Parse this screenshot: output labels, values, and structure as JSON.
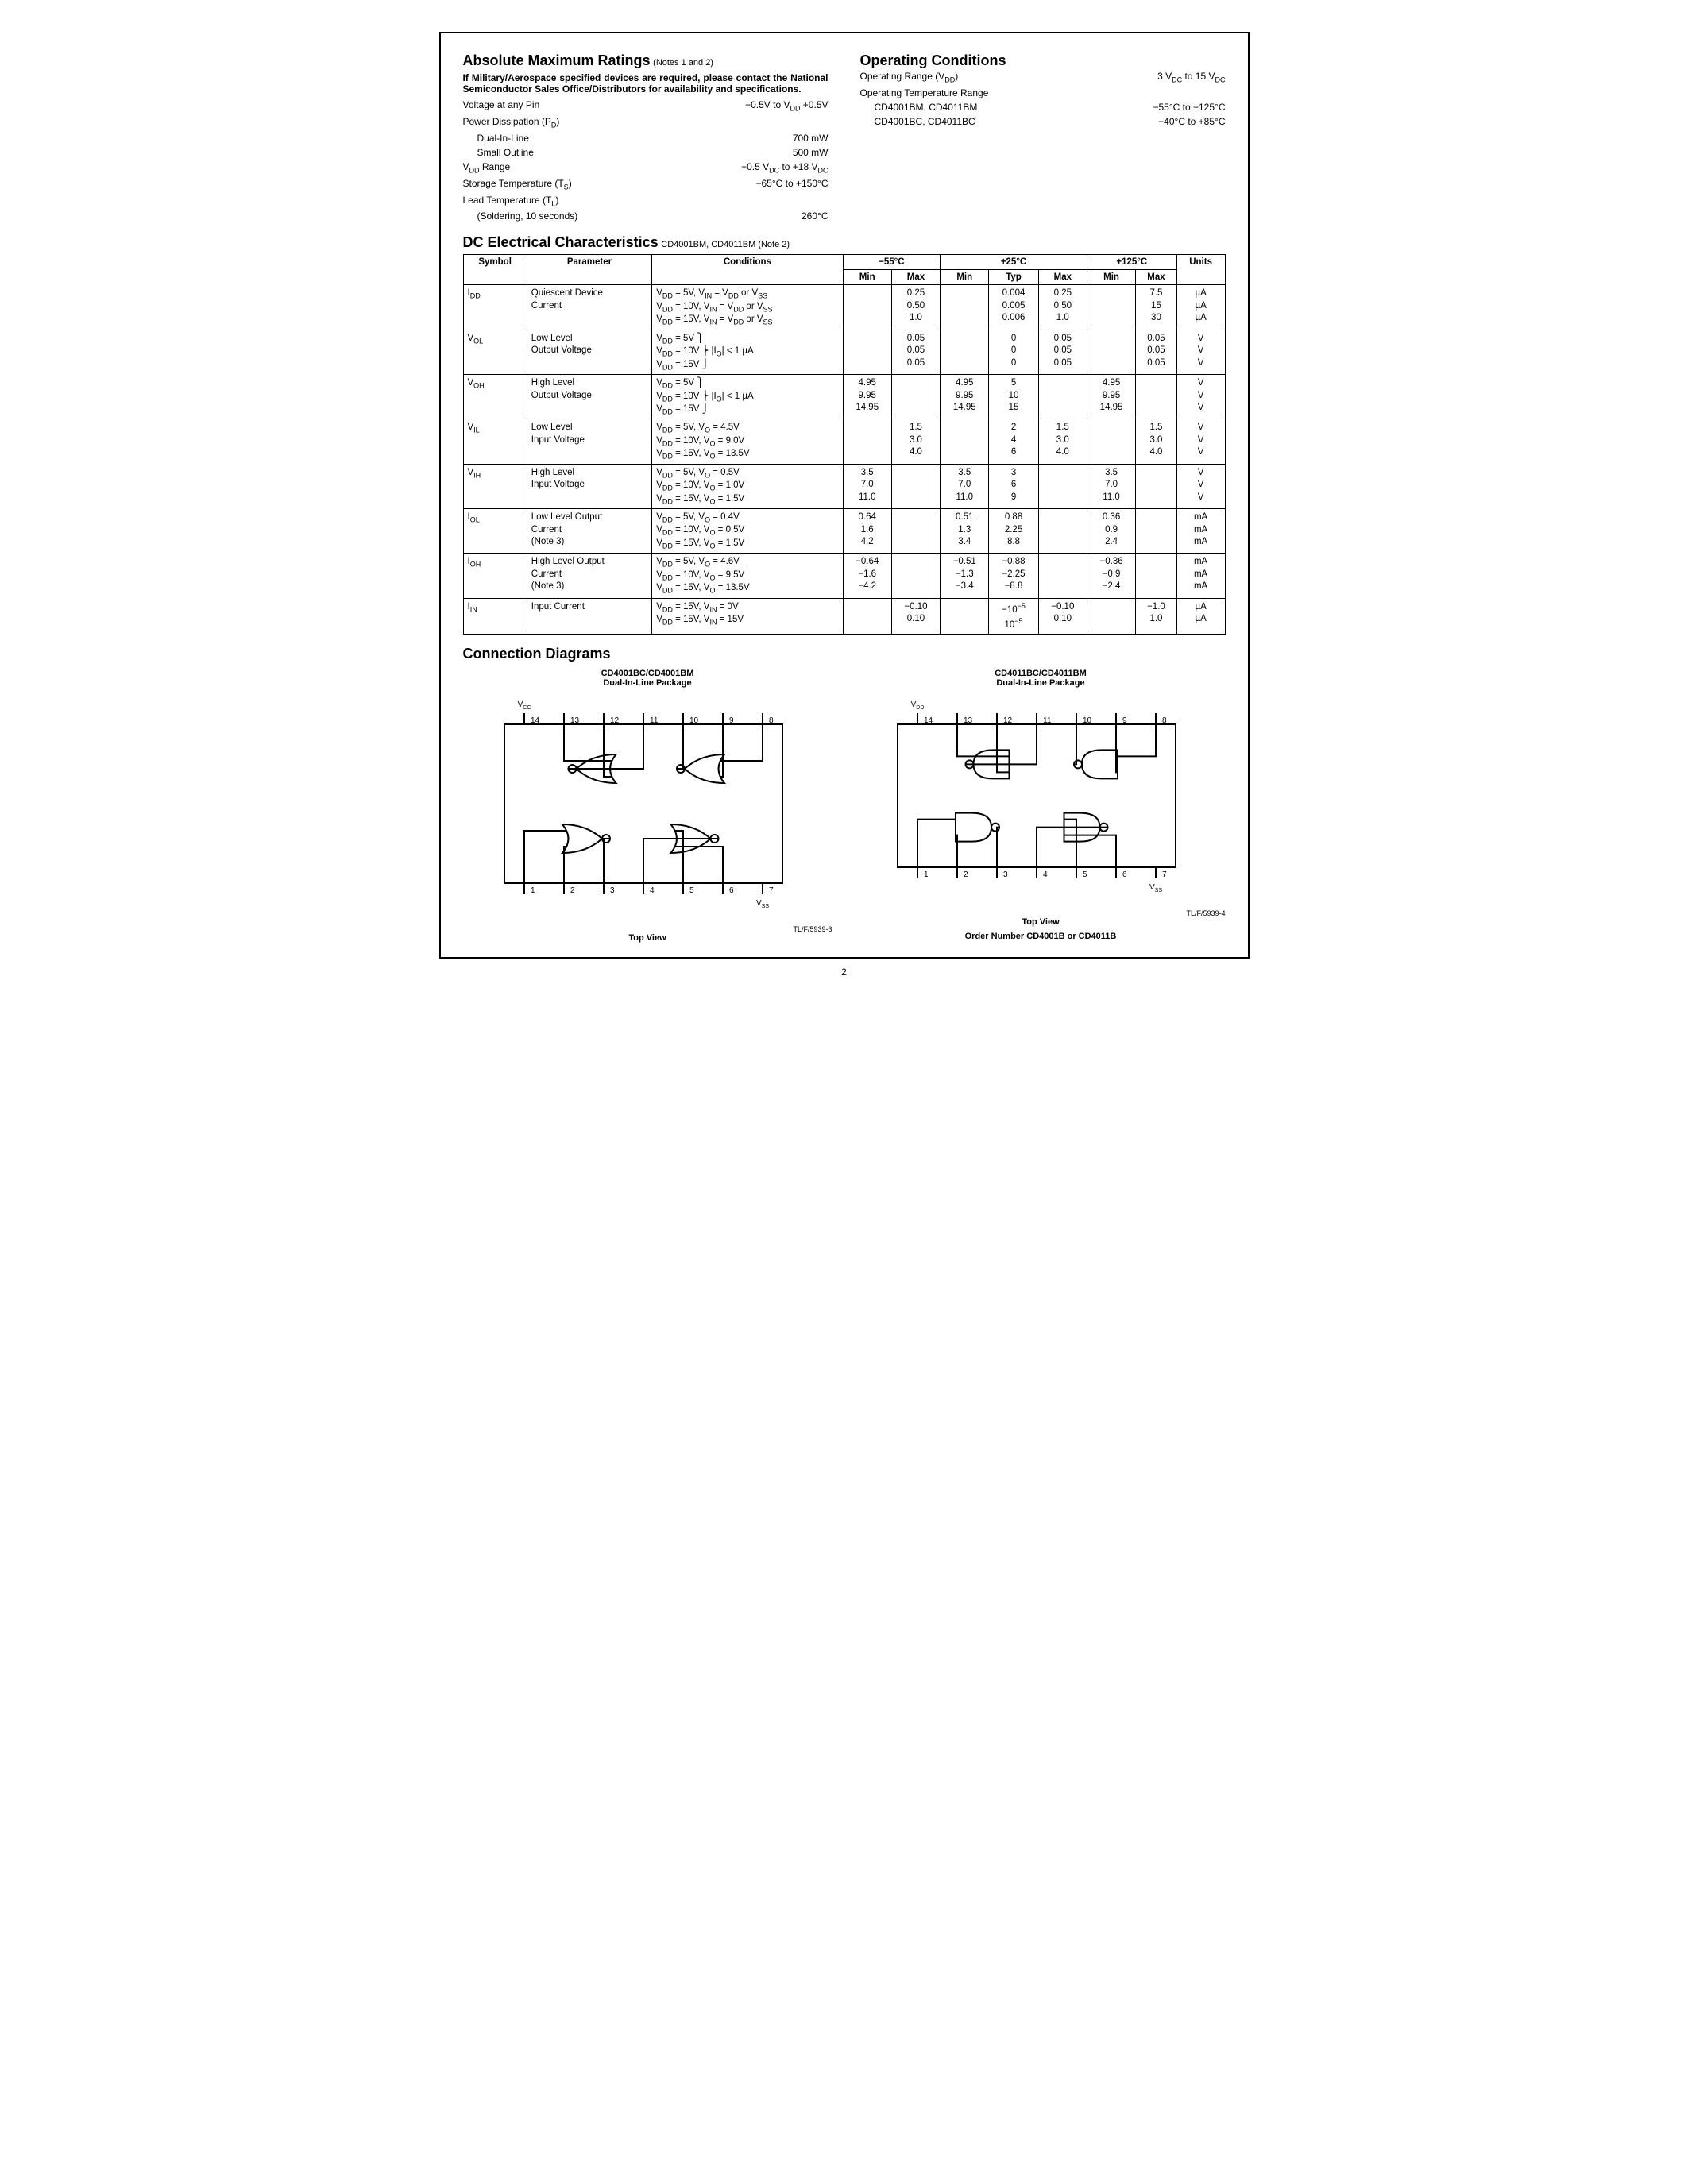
{
  "absMax": {
    "title": "Absolute Maximum Ratings",
    "notes": "(Notes 1 and 2)",
    "boldNote": "If Military/Aerospace specified devices are required, please contact the National Semiconductor Sales Office/Distributors for availability and specifications.",
    "rows": [
      {
        "label": "Voltage at any Pin",
        "value": "−0.5V to V_DD +0.5V"
      },
      {
        "label": "Power Dissipation (P_D)",
        "value": ""
      },
      {
        "label": "Dual-In-Line",
        "value": "700 mW",
        "indent": true
      },
      {
        "label": "Small Outline",
        "value": "500 mW",
        "indent": true
      },
      {
        "label": "V_DD Range",
        "value": "−0.5 V_DC to +18 V_DC"
      },
      {
        "label": "Storage Temperature (T_S)",
        "value": "−65°C to +150°C"
      },
      {
        "label": "Lead Temperature (T_L)",
        "value": ""
      },
      {
        "label": "(Soldering, 10 seconds)",
        "value": "260°C",
        "indent": true
      }
    ]
  },
  "opCond": {
    "title": "Operating Conditions",
    "rows": [
      {
        "label": "Operating Range (V_DD)",
        "value": "3 V_DC to 15 V_DC"
      },
      {
        "label": "Operating Temperature Range",
        "value": ""
      },
      {
        "label": "CD4001BM, CD4011BM",
        "value": "−55°C to +125°C",
        "indent": true
      },
      {
        "label": "CD4001BC, CD4011BC",
        "value": "−40°C to +85°C",
        "indent": true
      }
    ]
  },
  "dc": {
    "title": "DC Electrical Characteristics",
    "subtitle": "CD4001BM, CD4011BM (Note 2)",
    "tempHeaders": [
      "−55°C",
      "+25°C",
      "+125°C"
    ],
    "colHeaders": [
      "Symbol",
      "Parameter",
      "Conditions",
      "Min",
      "Max",
      "Min",
      "Typ",
      "Max",
      "Min",
      "Max",
      "Units"
    ],
    "rows": [
      {
        "symbol": "I_DD",
        "param": "Quiescent Device\nCurrent",
        "cond": "V_DD = 5V, V_IN = V_DD or V_SS\nV_DD = 10V, V_IN = V_DD or V_SS\nV_DD = 15V, V_IN = V_DD or V_SS",
        "c": [
          "",
          "0.25\n0.50\n1.0",
          "",
          "0.004\n0.005\n0.006",
          "0.25\n0.50\n1.0",
          "",
          "7.5\n15\n30",
          "µA\nµA\nµA"
        ]
      },
      {
        "symbol": "V_OL",
        "param": "Low Level\nOutput Voltage",
        "cond": "V_DD = 5V  ⎫\nV_DD = 10V ⎬  |I_O| < 1 µA\nV_DD = 15V ⎭",
        "c": [
          "",
          "0.05\n0.05\n0.05",
          "",
          "0\n0\n0",
          "0.05\n0.05\n0.05",
          "",
          "0.05\n0.05\n0.05",
          "V\nV\nV"
        ]
      },
      {
        "symbol": "V_OH",
        "param": "High Level\nOutput Voltage",
        "cond": "V_DD = 5V  ⎫\nV_DD = 10V ⎬  |I_O| < 1 µA\nV_DD = 15V ⎭",
        "c": [
          "4.95\n9.95\n14.95",
          "",
          "4.95\n9.95\n14.95",
          "5\n10\n15",
          "",
          "4.95\n9.95\n14.95",
          "",
          "V\nV\nV"
        ]
      },
      {
        "symbol": "V_IL",
        "param": "Low Level\nInput Voltage",
        "cond": "V_DD = 5V, V_O = 4.5V\nV_DD = 10V, V_O = 9.0V\nV_DD = 15V, V_O = 13.5V",
        "c": [
          "",
          "1.5\n3.0\n4.0",
          "",
          "2\n4\n6",
          "1.5\n3.0\n4.0",
          "",
          "1.5\n3.0\n4.0",
          "V\nV\nV"
        ]
      },
      {
        "symbol": "V_IH",
        "param": "High Level\nInput Voltage",
        "cond": "V_DD = 5V, V_O = 0.5V\nV_DD = 10V, V_O = 1.0V\nV_DD = 15V, V_O = 1.5V",
        "c": [
          "3.5\n7.0\n11.0",
          "",
          "3.5\n7.0\n11.0",
          "3\n6\n9",
          "",
          "3.5\n7.0\n11.0",
          "",
          "V\nV\nV"
        ]
      },
      {
        "symbol": "I_OL",
        "param": "Low Level Output\nCurrent\n(Note 3)",
        "cond": "V_DD = 5V, V_O = 0.4V\nV_DD = 10V, V_O = 0.5V\nV_DD = 15V, V_O = 1.5V",
        "c": [
          "0.64\n1.6\n4.2",
          "",
          "0.51\n1.3\n3.4",
          "0.88\n2.25\n8.8",
          "",
          "0.36\n0.9\n2.4",
          "",
          "mA\nmA\nmA"
        ]
      },
      {
        "symbol": "I_OH",
        "param": "High Level Output\nCurrent\n(Note 3)",
        "cond": "V_DD = 5V, V_O = 4.6V\nV_DD = 10V, V_O = 9.5V\nV_DD = 15V, V_O = 13.5V",
        "c": [
          "−0.64\n−1.6\n−4.2",
          "",
          "−0.51\n−1.3\n−3.4",
          "−0.88\n−2.25\n−8.8",
          "",
          "−0.36\n−0.9\n−2.4",
          "",
          "mA\nmA\nmA"
        ]
      },
      {
        "symbol": "I_IN",
        "param": "Input Current",
        "cond": "V_DD = 15V, V_IN = 0V\nV_DD = 15V, V_IN = 15V",
        "c": [
          "",
          "−0.10\n0.10",
          "",
          "−10⁻⁵\n10⁻⁵",
          "−0.10\n0.10",
          "",
          "−1.0\n1.0",
          "µA\nµA"
        ]
      }
    ]
  },
  "diagrams": {
    "title": "Connection Diagrams",
    "left": {
      "title": "CD4001BC/CD4001BM",
      "pkg": "Dual-In-Line Package",
      "view": "Top View",
      "tl": "TL/F/5939-3",
      "pins_top": [
        "14",
        "13",
        "12",
        "11",
        "10",
        "9",
        "8"
      ],
      "pins_bot": [
        "1",
        "2",
        "3",
        "4",
        "5",
        "6",
        "7"
      ],
      "vcc": "V_CC",
      "vss": "V_SS"
    },
    "right": {
      "title": "CD4011BC/CD4011BM",
      "pkg": "Dual-In-Line Package",
      "view": "Top View",
      "order": "Order Number CD4001B or CD4011B",
      "tl": "TL/F/5939-4",
      "pins_top": [
        "14",
        "13",
        "12",
        "11",
        "10",
        "9",
        "8"
      ],
      "pins_bot": [
        "1",
        "2",
        "3",
        "4",
        "5",
        "6",
        "7"
      ],
      "vdd": "V_DD",
      "vss": "V_SS"
    }
  },
  "pageNum": "2"
}
